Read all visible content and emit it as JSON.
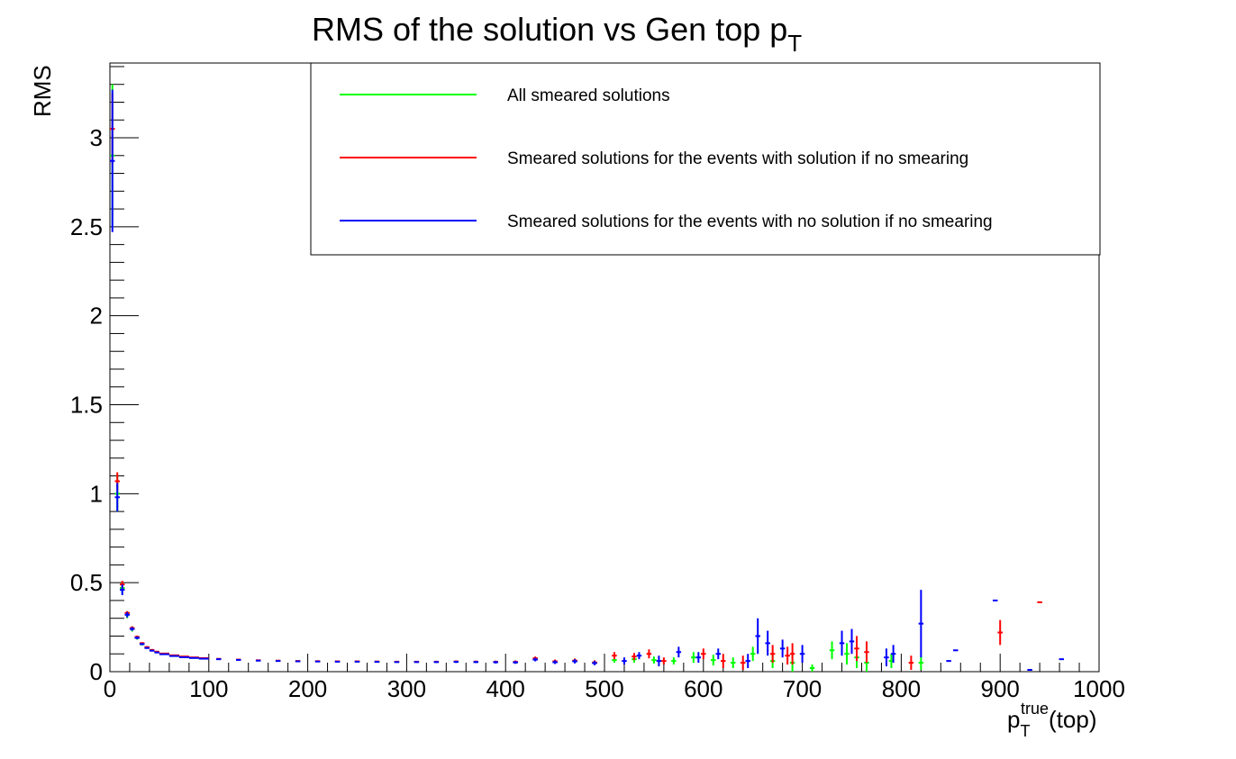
{
  "chart_data": {
    "type": "scatter",
    "title": "RMS of the solution vs Gen top p",
    "title_subscript": "T",
    "xlabel_main": "p",
    "xlabel_sub": "T",
    "xlabel_sup": "true",
    "xlabel_suffix": "(top)",
    "ylabel": "RMS",
    "xlim": [
      0,
      1000
    ],
    "ylim": [
      0,
      3.42
    ],
    "x_ticks": [
      0,
      100,
      200,
      300,
      400,
      500,
      600,
      700,
      800,
      900,
      1000
    ],
    "x_tick_labels": [
      "0",
      "100",
      "200",
      "300",
      "400",
      "500",
      "600",
      "700",
      "800",
      "900",
      "1000"
    ],
    "y_ticks": [
      0,
      0.5,
      1,
      1.5,
      2,
      2.5,
      3
    ],
    "y_tick_labels": [
      "0",
      "0.5",
      "1",
      "1.5",
      "2",
      "2.5",
      "3"
    ],
    "grid": false,
    "legend_position": "top-right",
    "series": [
      {
        "name": "All smeared solutions",
        "color": "#00ff00",
        "points": [
          [
            2.5,
            2.9,
            0.4
          ],
          [
            7.5,
            1.0,
            0.1
          ],
          [
            12.5,
            0.47,
            0.03
          ],
          [
            17.5,
            0.32,
            0.02
          ],
          [
            22.5,
            0.24,
            0.015
          ],
          [
            27.5,
            0.19,
            0.01
          ],
          [
            32.5,
            0.155,
            0.008
          ],
          [
            37.5,
            0.135,
            0.006
          ],
          [
            42.5,
            0.12,
            0.005
          ],
          [
            47.5,
            0.11,
            0.005
          ],
          [
            55,
            0.1,
            0.004
          ],
          [
            65,
            0.09,
            0.004
          ],
          [
            75,
            0.083,
            0.003
          ],
          [
            85,
            0.078,
            0.003
          ],
          [
            95,
            0.074,
            0.003
          ],
          [
            110,
            0.071,
            0.003
          ],
          [
            130,
            0.067,
            0.003
          ],
          [
            150,
            0.063,
            0.003
          ],
          [
            170,
            0.061,
            0.003
          ],
          [
            190,
            0.059,
            0.003
          ],
          [
            210,
            0.058,
            0.003
          ],
          [
            230,
            0.057,
            0.003
          ],
          [
            250,
            0.057,
            0.003
          ],
          [
            270,
            0.056,
            0.004
          ],
          [
            290,
            0.055,
            0.004
          ],
          [
            310,
            0.055,
            0.004
          ],
          [
            330,
            0.055,
            0.005
          ],
          [
            350,
            0.056,
            0.006
          ],
          [
            370,
            0.055,
            0.006
          ],
          [
            390,
            0.054,
            0.007
          ],
          [
            410,
            0.053,
            0.008
          ],
          [
            430,
            0.07,
            0.01
          ],
          [
            450,
            0.055,
            0.01
          ],
          [
            470,
            0.06,
            0.012
          ],
          [
            490,
            0.05,
            0.012
          ],
          [
            510,
            0.065,
            0.015
          ],
          [
            530,
            0.07,
            0.02
          ],
          [
            550,
            0.065,
            0.02
          ],
          [
            570,
            0.06,
            0.02
          ],
          [
            590,
            0.08,
            0.03
          ],
          [
            610,
            0.065,
            0.03
          ],
          [
            630,
            0.05,
            0.03
          ],
          [
            650,
            0.1,
            0.04
          ],
          [
            670,
            0.06,
            0.04
          ],
          [
            690,
            0.05,
            0.05
          ],
          [
            710,
            0.02,
            0.02
          ],
          [
            730,
            0.12,
            0.05
          ],
          [
            745,
            0.1,
            0.06
          ],
          [
            755,
            0.08,
            0.06
          ],
          [
            765,
            0.05,
            0.05
          ],
          [
            790,
            0.06,
            0.04
          ],
          [
            820,
            0.05,
            0.04
          ]
        ]
      },
      {
        "name": "Smeared solutions for the events with solution if no smearing",
        "color": "#ff0000",
        "points": [
          [
            2.5,
            3.05,
            0.2
          ],
          [
            7.5,
            1.07,
            0.05
          ],
          [
            12.5,
            0.49,
            0.02
          ],
          [
            17.5,
            0.33,
            0.01
          ],
          [
            22.5,
            0.245,
            0.01
          ],
          [
            27.5,
            0.195,
            0.008
          ],
          [
            32.5,
            0.16,
            0.006
          ],
          [
            37.5,
            0.138,
            0.005
          ],
          [
            42.5,
            0.122,
            0.005
          ],
          [
            47.5,
            0.112,
            0.005
          ],
          [
            55,
            0.102,
            0.004
          ],
          [
            65,
            0.092,
            0.004
          ],
          [
            75,
            0.085,
            0.003
          ],
          [
            85,
            0.08,
            0.003
          ],
          [
            95,
            0.076,
            0.003
          ],
          [
            110,
            0.072,
            0.003
          ],
          [
            130,
            0.068,
            0.003
          ],
          [
            150,
            0.064,
            0.003
          ],
          [
            170,
            0.062,
            0.003
          ],
          [
            190,
            0.06,
            0.003
          ],
          [
            210,
            0.059,
            0.003
          ],
          [
            230,
            0.058,
            0.003
          ],
          [
            250,
            0.058,
            0.003
          ],
          [
            270,
            0.057,
            0.004
          ],
          [
            290,
            0.056,
            0.004
          ],
          [
            310,
            0.056,
            0.004
          ],
          [
            330,
            0.056,
            0.005
          ],
          [
            350,
            0.057,
            0.006
          ],
          [
            370,
            0.056,
            0.006
          ],
          [
            390,
            0.055,
            0.007
          ],
          [
            410,
            0.055,
            0.008
          ],
          [
            430,
            0.075,
            0.01
          ],
          [
            450,
            0.058,
            0.01
          ],
          [
            470,
            0.062,
            0.012
          ],
          [
            490,
            0.052,
            0.012
          ],
          [
            510,
            0.09,
            0.02
          ],
          [
            530,
            0.085,
            0.02
          ],
          [
            545,
            0.1,
            0.025
          ],
          [
            560,
            0.06,
            0.02
          ],
          [
            600,
            0.1,
            0.03
          ],
          [
            620,
            0.06,
            0.04
          ],
          [
            640,
            0.05,
            0.04
          ],
          [
            670,
            0.1,
            0.05
          ],
          [
            685,
            0.09,
            0.05
          ],
          [
            690,
            0.1,
            0.06
          ],
          [
            755,
            0.13,
            0.07
          ],
          [
            765,
            0.11,
            0.06
          ],
          [
            810,
            0.05,
            0.04
          ],
          [
            900,
            0.22,
            0.07
          ],
          [
            940,
            0.39,
            0.004
          ]
        ]
      },
      {
        "name": "Smeared solutions for the events with no solution if no smearing",
        "color": "#0000ff",
        "points": [
          [
            2.5,
            2.87,
            0.4
          ],
          [
            7.5,
            0.98,
            0.08
          ],
          [
            12.5,
            0.46,
            0.03
          ],
          [
            17.5,
            0.32,
            0.015
          ],
          [
            22.5,
            0.24,
            0.01
          ],
          [
            27.5,
            0.19,
            0.008
          ],
          [
            32.5,
            0.155,
            0.006
          ],
          [
            37.5,
            0.133,
            0.005
          ],
          [
            42.5,
            0.118,
            0.005
          ],
          [
            47.5,
            0.108,
            0.005
          ],
          [
            55,
            0.098,
            0.004
          ],
          [
            65,
            0.088,
            0.004
          ],
          [
            75,
            0.081,
            0.003
          ],
          [
            85,
            0.077,
            0.003
          ],
          [
            95,
            0.073,
            0.003
          ],
          [
            110,
            0.07,
            0.003
          ],
          [
            130,
            0.066,
            0.003
          ],
          [
            150,
            0.062,
            0.003
          ],
          [
            170,
            0.06,
            0.003
          ],
          [
            190,
            0.058,
            0.003
          ],
          [
            210,
            0.057,
            0.003
          ],
          [
            230,
            0.056,
            0.003
          ],
          [
            250,
            0.056,
            0.003
          ],
          [
            270,
            0.055,
            0.004
          ],
          [
            290,
            0.054,
            0.004
          ],
          [
            310,
            0.054,
            0.004
          ],
          [
            330,
            0.054,
            0.005
          ],
          [
            350,
            0.055,
            0.006
          ],
          [
            370,
            0.054,
            0.006
          ],
          [
            390,
            0.053,
            0.007
          ],
          [
            410,
            0.052,
            0.008
          ],
          [
            430,
            0.068,
            0.01
          ],
          [
            450,
            0.053,
            0.01
          ],
          [
            470,
            0.058,
            0.012
          ],
          [
            490,
            0.048,
            0.012
          ],
          [
            520,
            0.06,
            0.02
          ],
          [
            535,
            0.09,
            0.02
          ],
          [
            555,
            0.06,
            0.03
          ],
          [
            575,
            0.11,
            0.03
          ],
          [
            595,
            0.08,
            0.03
          ],
          [
            615,
            0.1,
            0.03
          ],
          [
            645,
            0.06,
            0.04
          ],
          [
            655,
            0.2,
            0.1
          ],
          [
            665,
            0.16,
            0.07
          ],
          [
            680,
            0.13,
            0.05
          ],
          [
            700,
            0.1,
            0.05
          ],
          [
            740,
            0.16,
            0.07
          ],
          [
            750,
            0.17,
            0.07
          ],
          [
            785,
            0.08,
            0.05
          ],
          [
            792,
            0.1,
            0.05
          ],
          [
            820,
            0.27,
            0.19
          ],
          [
            848,
            0.06,
            0.004
          ],
          [
            855,
            0.12,
            0.004
          ],
          [
            895,
            0.4,
            0.004
          ],
          [
            930,
            0.01,
            0.004
          ],
          [
            962,
            0.07,
            0.004
          ]
        ]
      }
    ]
  }
}
